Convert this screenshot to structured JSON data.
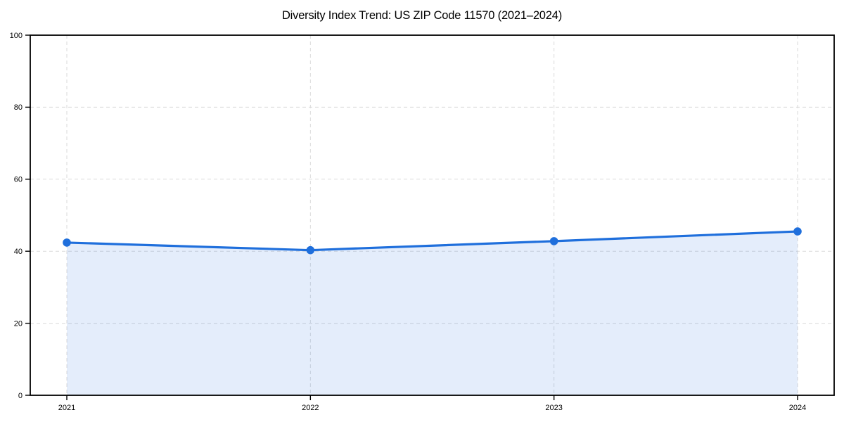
{
  "chart_data": {
    "type": "area",
    "title": "Diversity Index Trend: US ZIP Code 11570 (2021–2024)",
    "categories": [
      "2021",
      "2022",
      "2023",
      "2024"
    ],
    "values": [
      42.4,
      40.3,
      42.8,
      45.5
    ],
    "xlabel": "",
    "ylabel": "",
    "ylim": [
      0,
      100
    ],
    "yticks": [
      0,
      20,
      40,
      60,
      80,
      100
    ],
    "grid": true,
    "grid_style": "dashed",
    "legend_position": "none",
    "markers": true,
    "colors": {
      "line": "#1f6fdc",
      "marker": "#1f6fdc",
      "fill": "#1f6fdc",
      "fill_opacity": 0.12,
      "grid": "#dadada",
      "axis": "#000000",
      "tick_text": "#000000",
      "background": "#ffffff"
    }
  }
}
